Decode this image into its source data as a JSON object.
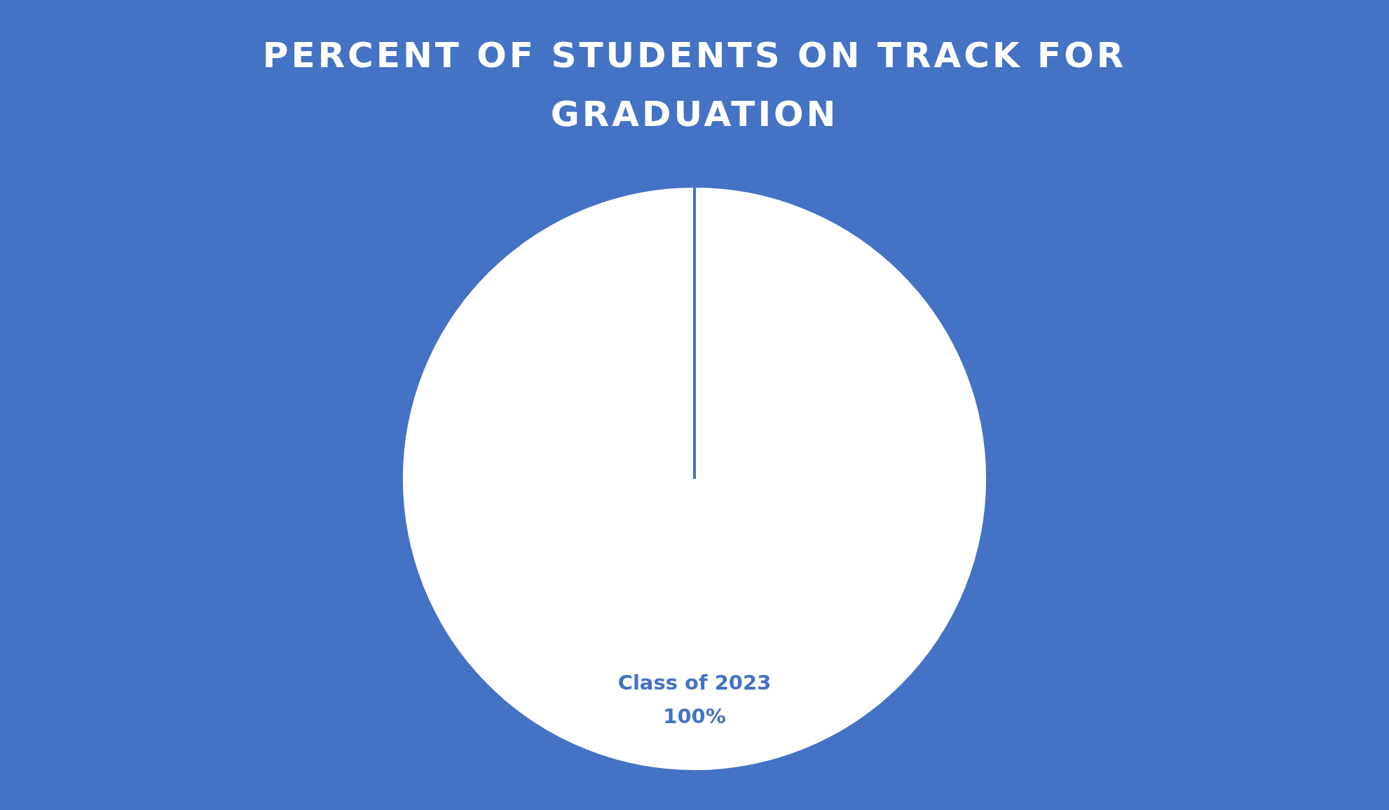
{
  "chart_data": {
    "type": "pie",
    "title": "PERCENT OF STUDENTS ON TRACK FOR GRADUATION",
    "categories": [
      "Class of 2023"
    ],
    "values": [
      100
    ],
    "value_labels": [
      "100%"
    ],
    "colors": [
      "#ffffff"
    ]
  }
}
